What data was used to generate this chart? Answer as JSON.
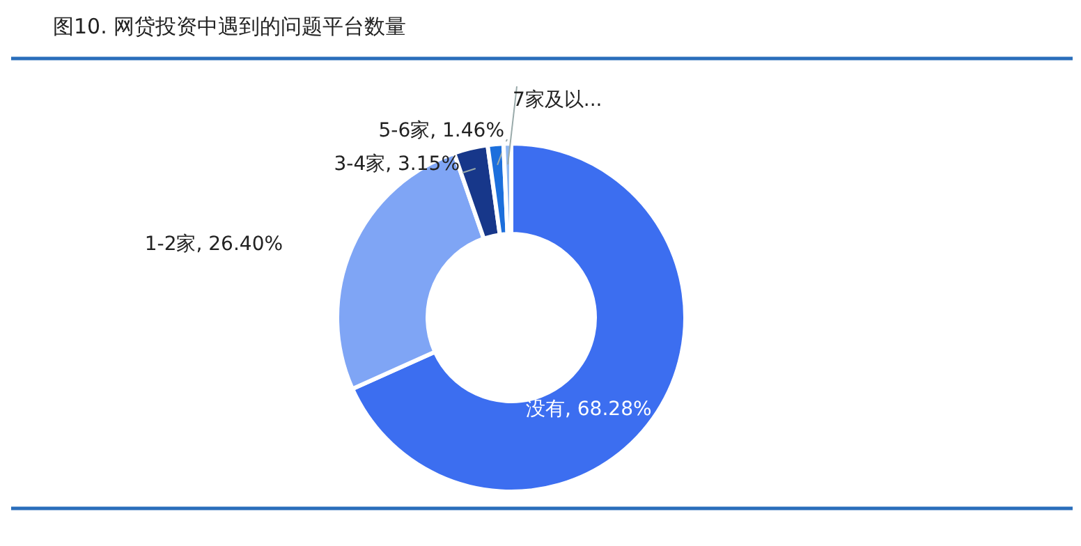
{
  "chart_data": {
    "type": "donut",
    "title": "图10. 网贷投资中遇到的问题平台数量",
    "categories": [
      "没有",
      "1-2家",
      "3-4家",
      "5-6家",
      "7家及以..."
    ],
    "values": [
      68.28,
      26.4,
      3.15,
      1.46,
      0.71
    ],
    "colors": [
      "#3c6ef0",
      "#7fa5f5",
      "#17378a",
      "#1c6fdc",
      "#8fb8f0"
    ],
    "value_labels": [
      "68.28%",
      "26.40%",
      "3.15%",
      "1.46%",
      null
    ]
  }
}
